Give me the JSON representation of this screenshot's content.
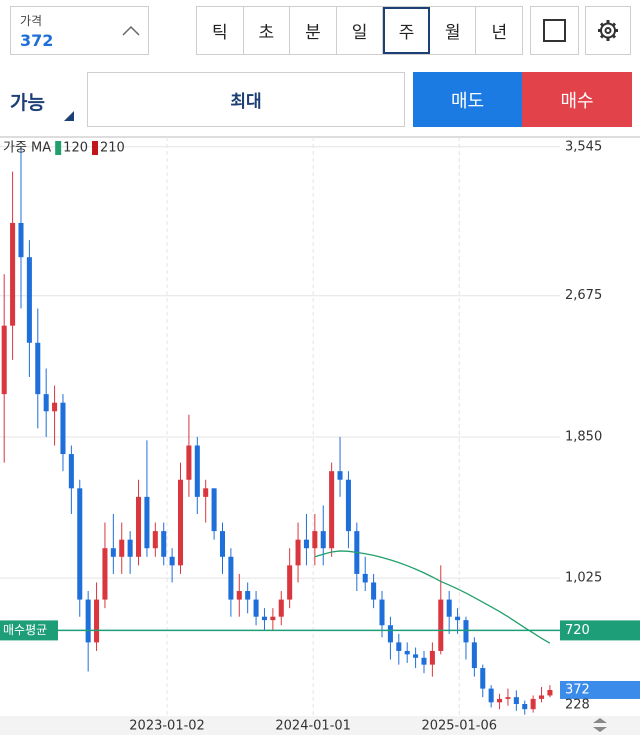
{
  "header": {
    "price_label": "가격",
    "price": "372"
  },
  "timeframes": [
    "틱",
    "초",
    "분",
    "일",
    "주",
    "월",
    "년"
  ],
  "selected_timeframe": "주",
  "order": {
    "available": "가능",
    "quantity": "최대",
    "sell": "매도",
    "buy": "매수"
  },
  "chart_data": {
    "type": "candlestick",
    "legend_label": "가중 MA",
    "up_color": "#d9363e",
    "down_color": "#1e6fd9",
    "open": [
      2100,
      2500,
      3100,
      2900,
      2400,
      2100,
      2000,
      2050,
      1750,
      1550,
      900,
      650,
      900,
      1200,
      1150,
      1250,
      1150,
      1500,
      1200,
      1300,
      1150,
      1100,
      1600,
      1800,
      1500,
      1550,
      1300,
      1150,
      900,
      950,
      900,
      800,
      780,
      800,
      900,
      1100,
      1250,
      1200,
      1300,
      1200,
      1650,
      1600,
      1300,
      1050,
      1000,
      900,
      750,
      650,
      600,
      580,
      560,
      520,
      600,
      900,
      800,
      780,
      650,
      500,
      380,
      300,
      320,
      330,
      290,
      260,
      320,
      340
    ],
    "high": [
      2800,
      3400,
      3545,
      3000,
      2600,
      2250,
      2150,
      2100,
      1800,
      1600,
      950,
      1000,
      1350,
      1400,
      1350,
      1300,
      1600,
      1830,
      1350,
      1350,
      1200,
      1700,
      1980,
      1850,
      1600,
      1550,
      1350,
      1200,
      1050,
      1000,
      950,
      850,
      850,
      950,
      1200,
      1350,
      1400,
      1400,
      1450,
      1700,
      1850,
      1650,
      1350,
      1150,
      1050,
      950,
      800,
      700,
      650,
      620,
      600,
      650,
      1100,
      950,
      850,
      800,
      680,
      520,
      400,
      350,
      380,
      370,
      310,
      340,
      390,
      400
    ],
    "low": [
      1700,
      2300,
      2600,
      2200,
      1900,
      1850,
      1800,
      1650,
      1400,
      800,
      480,
      600,
      850,
      1050,
      1050,
      1050,
      1100,
      1150,
      1150,
      1100,
      1000,
      1050,
      1500,
      1400,
      1350,
      1250,
      1050,
      800,
      800,
      820,
      750,
      720,
      720,
      750,
      850,
      1000,
      1100,
      1100,
      1100,
      1150,
      1500,
      1200,
      950,
      950,
      850,
      680,
      550,
      520,
      530,
      500,
      470,
      450,
      580,
      700,
      700,
      550,
      450,
      330,
      270,
      260,
      280,
      250,
      228,
      240,
      300,
      330
    ],
    "close": [
      2500,
      3100,
      2900,
      2400,
      2100,
      2000,
      2050,
      1750,
      1550,
      900,
      650,
      900,
      1200,
      1150,
      1250,
      1150,
      1500,
      1200,
      1300,
      1150,
      1100,
      1600,
      1800,
      1500,
      1550,
      1300,
      1150,
      900,
      950,
      900,
      800,
      780,
      800,
      900,
      1100,
      1250,
      1200,
      1300,
      1200,
      1650,
      1600,
      1300,
      1050,
      1000,
      900,
      750,
      650,
      600,
      580,
      560,
      520,
      600,
      900,
      800,
      780,
      650,
      500,
      380,
      300,
      320,
      330,
      290,
      260,
      320,
      340,
      372
    ],
    "series": [
      {
        "name": "120",
        "color": "#22a06b",
        "values": [
          null,
          null,
          null,
          null,
          null,
          null,
          null,
          null,
          null,
          null,
          null,
          null,
          null,
          null,
          null,
          null,
          null,
          null,
          null,
          null,
          null,
          null,
          null,
          null,
          null,
          null,
          null,
          null,
          null,
          null,
          null,
          null,
          null,
          null,
          null,
          null,
          null,
          1150,
          1165,
          1178,
          1184,
          1182,
          1176,
          1168,
          1158,
          1146,
          1132,
          1116,
          1098,
          1078,
          1056,
          1032,
          1006,
          985,
          962,
          938,
          912,
          885,
          858,
          830,
          800,
          768,
          736,
          705,
          674,
          645
        ]
      },
      {
        "name": "210",
        "color": "#c0151b",
        "values": [
          null,
          null,
          null,
          null,
          null,
          null,
          null,
          null,
          null,
          null,
          null,
          null,
          null,
          null,
          null,
          null,
          null,
          null,
          null,
          null,
          null,
          null,
          null,
          null,
          null,
          null,
          null,
          null,
          null,
          null,
          null,
          null,
          null,
          null,
          null,
          null,
          null,
          null,
          null,
          null,
          null,
          null,
          null,
          null,
          null,
          null,
          null,
          null,
          null,
          null,
          null,
          null,
          null,
          null,
          null,
          null,
          null,
          null,
          null,
          null,
          null,
          null,
          null,
          null,
          null,
          null
        ]
      }
    ],
    "avg_price": {
      "label": "매수평균",
      "value": 720,
      "color": "#1e9e78"
    },
    "current_price": {
      "value": 372,
      "color": "#3b8beb"
    },
    "low_price": 228,
    "xlim": [
      -0.5,
      66.2
    ],
    "ylim": [
      220,
      3602
    ],
    "xticks": [
      {
        "value": 19.4,
        "label": "2023-01-02"
      },
      {
        "value": 36.8,
        "label": "2024-01-01"
      },
      {
        "value": 54.2,
        "label": "2025-01-06"
      }
    ],
    "yticks": [
      {
        "value": 3545,
        "label": "3,545"
      },
      {
        "value": 2675,
        "label": "2,675"
      },
      {
        "value": 1850,
        "label": "1,850"
      },
      {
        "value": 1025,
        "label": "1,025"
      }
    ],
    "grid": true
  }
}
